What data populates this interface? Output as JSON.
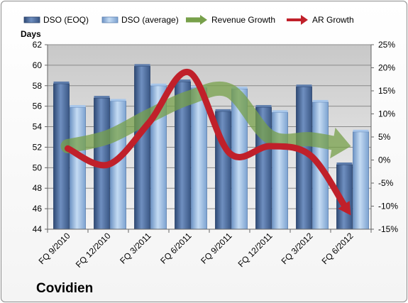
{
  "chart_data": {
    "type": "bar",
    "company": "Covidien",
    "categories": [
      "FQ 9/2010",
      "FQ 12/2010",
      "FQ 3/2011",
      "FQ 6/2011",
      "FQ 9/2011",
      "FQ 12/2011",
      "FQ 3/2012",
      "FQ 6/2012"
    ],
    "ylabel": "Days",
    "ylim": [
      44,
      62
    ],
    "yticks": [
      44,
      46,
      48,
      50,
      52,
      54,
      56,
      58,
      60,
      62
    ],
    "y2lim": [
      -15,
      25
    ],
    "y2ticks": [
      "-15%",
      "-10%",
      "-5%",
      "0%",
      "5%",
      "10%",
      "15%",
      "20%",
      "25%"
    ],
    "y2tick_values": [
      -15,
      -10,
      -5,
      0,
      5,
      10,
      15,
      20,
      25
    ],
    "legend_position": "top",
    "bar_series": [
      {
        "name": "DSO (EOQ)",
        "color": "#4a6a9a",
        "values": [
          58.2,
          56.8,
          59.9,
          58.4,
          55.5,
          55.9,
          57.9,
          50.3
        ]
      },
      {
        "name": "DSO (average)",
        "color": "#8fb3dc",
        "values": [
          55.9,
          56.5,
          58.0,
          57.8,
          57.7,
          55.4,
          56.4,
          53.5
        ]
      }
    ],
    "line_series": [
      {
        "name": "Revenue Growth",
        "color": "#77a04a",
        "axis": "secondary",
        "values": [
          3.0,
          5.0,
          9.5,
          13.5,
          15.0,
          5.0,
          4.5,
          3.0
        ]
      },
      {
        "name": "AR Growth",
        "color": "#c0202a",
        "axis": "secondary",
        "values": [
          2.5,
          -1.0,
          8.0,
          19.0,
          1.5,
          3.0,
          1.0,
          -12.0
        ]
      }
    ]
  }
}
